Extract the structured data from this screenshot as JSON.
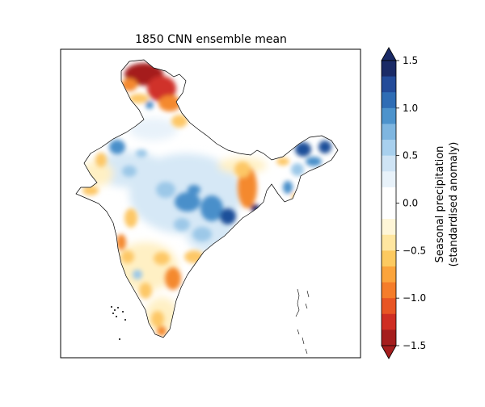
{
  "figure": {
    "title": "1850 CNN ensemble mean"
  },
  "colorbar": {
    "label_line1": "Seasonal precipitation",
    "label_line2": "(standardised anomaly)",
    "range": [
      -1.5,
      1.5
    ],
    "ticks": [
      "1.5",
      "1.0",
      "0.5",
      "0.0",
      "−0.5",
      "−1.0",
      "−1.5"
    ],
    "colors_high_to_low": [
      "#1a2a66",
      "#234b99",
      "#2f6db5",
      "#4d93cc",
      "#7fb6e0",
      "#a8d0ee",
      "#cfe4f5",
      "#e8f2fa",
      "#ffffff",
      "#ffffff",
      "#fff6d8",
      "#ffe6a0",
      "#fdca60",
      "#fba43c",
      "#f57d2a",
      "#e85524",
      "#cf2e23",
      "#a51d1d"
    ],
    "extend": "both"
  },
  "map": {
    "region": "India",
    "palette": {
      "deep_red": "#a51d1d",
      "red": "#d0322a",
      "orange": "#f4892e",
      "light_orange": "#fdc766",
      "pale_yellow": "#fff0c4",
      "white": "#ffffff",
      "pale_blue": "#d6e8f6",
      "light_blue": "#9cc8e8",
      "blue": "#4a8fca",
      "dark_blue": "#1f4f9a",
      "navy": "#1a2a66"
    }
  }
}
